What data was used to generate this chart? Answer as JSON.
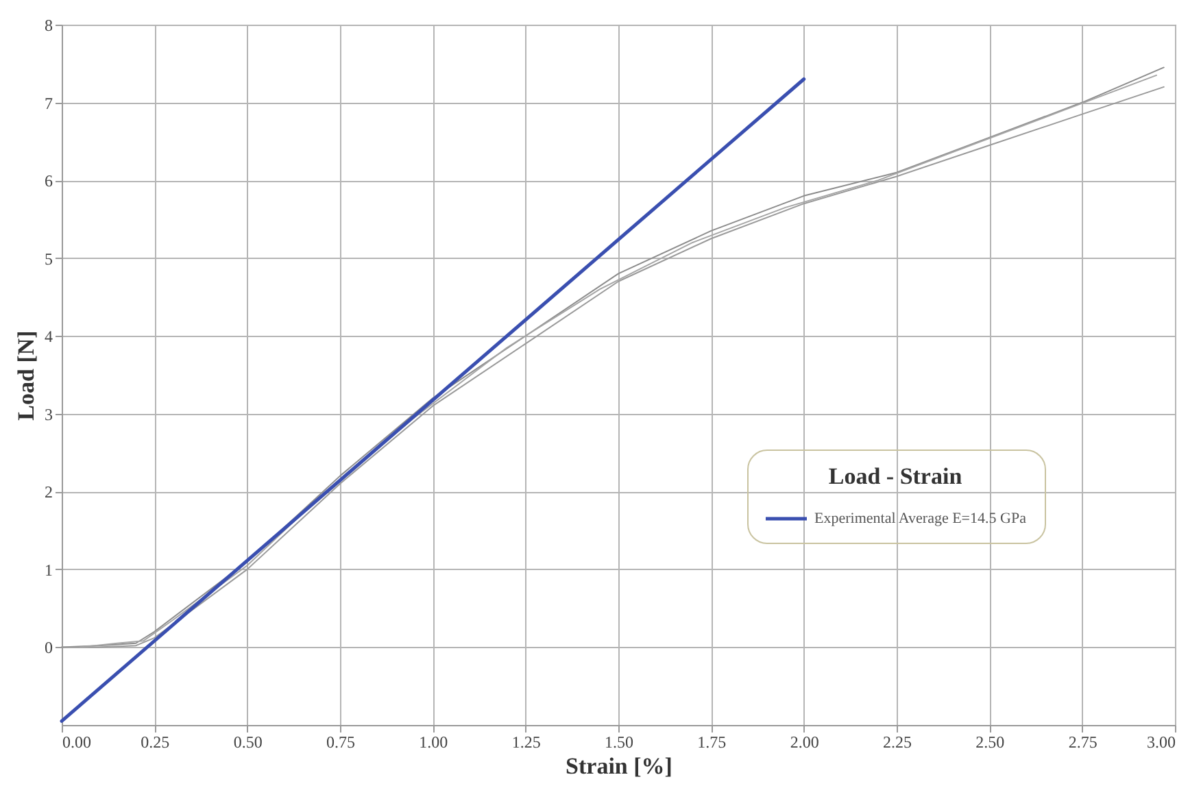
{
  "chart_data": {
    "type": "line",
    "xlabel": "Strain [%]",
    "ylabel": "Load [N]",
    "legend_title": "Load - Strain",
    "xlim": [
      0,
      3
    ],
    "ylim": [
      -1,
      8
    ],
    "xticks": [
      {
        "value": 0,
        "label": "0.00"
      },
      {
        "value": 0.25,
        "label": "0.25"
      },
      {
        "value": 0.5,
        "label": "0.50"
      },
      {
        "value": 0.75,
        "label": "0.75"
      },
      {
        "value": 1,
        "label": "1.00"
      },
      {
        "value": 1.25,
        "label": "1.25"
      },
      {
        "value": 1.5,
        "label": "1.50"
      },
      {
        "value": 1.75,
        "label": "1.75"
      },
      {
        "value": 2,
        "label": "2.00"
      },
      {
        "value": 2.25,
        "label": "2.25"
      },
      {
        "value": 2.5,
        "label": "2.50"
      },
      {
        "value": 2.75,
        "label": "2.75"
      },
      {
        "value": 3,
        "label": "3.00"
      }
    ],
    "yticks": [
      0,
      1,
      2,
      3,
      4,
      5,
      6,
      7,
      8
    ],
    "grid": true,
    "legend": "right",
    "line_style": "solid",
    "series": [
      {
        "color": "#8c8c8c",
        "x": [
          0,
          0.1,
          0.2,
          0.25,
          0.5,
          0.75,
          1.0,
          1.25,
          1.5,
          1.75,
          2.0,
          2.25,
          2.5,
          2.75,
          2.97
        ],
        "values": [
          0,
          0.02,
          0.05,
          0.2,
          1.1,
          2.2,
          3.2,
          4.0,
          4.8,
          5.35,
          5.8,
          6.1,
          6.55,
          7.0,
          7.45
        ]
      },
      {
        "color": "#9a9a9a",
        "x": [
          0,
          0.1,
          0.2,
          0.25,
          0.5,
          0.75,
          1.0,
          1.25,
          1.5,
          1.75,
          2.0,
          2.25,
          2.5,
          2.75,
          2.97
        ],
        "values": [
          0,
          0,
          0.02,
          0.12,
          1.0,
          2.1,
          3.1,
          3.9,
          4.7,
          5.25,
          5.7,
          6.05,
          6.45,
          6.85,
          7.2
        ]
      },
      {
        "color": "#a5a5a5",
        "x": [
          0.05,
          0.15,
          0.22,
          0.3,
          0.5,
          0.7,
          0.95,
          1.2,
          1.45,
          1.7,
          1.95,
          2.2,
          2.45,
          2.7,
          2.95
        ],
        "values": [
          0,
          0.05,
          0.08,
          0.35,
          1.05,
          1.95,
          2.95,
          3.85,
          4.6,
          5.2,
          5.65,
          6.0,
          6.45,
          6.9,
          7.35
        ]
      },
      {
        "name": "Experimental Average E=14.5 GPa",
        "color": "#3a4fb0",
        "x": [
          0,
          2.0
        ],
        "values": [
          -0.95,
          7.3
        ]
      }
    ]
  }
}
